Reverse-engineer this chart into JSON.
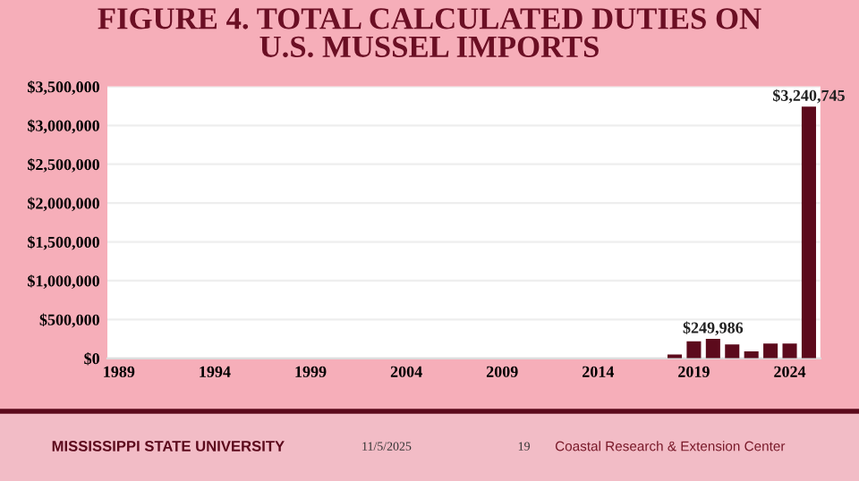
{
  "chart_data": {
    "type": "bar",
    "title": "FIGURE 4. TOTAL CALCULATED DUTIES ON\nU.S. MUSSEL IMPORTS",
    "categories": [
      "1989",
      null,
      null,
      null,
      null,
      "1994",
      null,
      null,
      null,
      null,
      "1999",
      null,
      null,
      null,
      null,
      "2004",
      null,
      null,
      null,
      null,
      "2009",
      null,
      null,
      null,
      null,
      "2014",
      null,
      null,
      null,
      null,
      "2019",
      null,
      null,
      null,
      null,
      "2024",
      null
    ],
    "values": [
      0,
      0,
      0,
      0,
      0,
      0,
      0,
      0,
      0,
      0,
      0,
      0,
      0,
      0,
      0,
      0,
      0,
      0,
      0,
      0,
      0,
      0,
      0,
      0,
      0,
      0,
      0,
      0,
      0,
      50000,
      220000,
      249986,
      180000,
      90000,
      190000,
      190000,
      3240745
    ],
    "value_labels": [
      null,
      null,
      null,
      null,
      null,
      null,
      null,
      null,
      null,
      null,
      null,
      null,
      null,
      null,
      null,
      null,
      null,
      null,
      null,
      null,
      null,
      null,
      null,
      null,
      null,
      null,
      null,
      null,
      null,
      null,
      null,
      "$249,986",
      null,
      null,
      null,
      null,
      "$3,240,745"
    ],
    "color": "#5c0a1c",
    "ylim": [
      0,
      3500000
    ],
    "yticks": [
      {
        "value": 0,
        "label": "$0"
      },
      {
        "value": 500000,
        "label": "$500,000"
      },
      {
        "value": 1000000,
        "label": "$1,000,000"
      },
      {
        "value": 1500000,
        "label": "$1,500,000"
      },
      {
        "value": 2000000,
        "label": "$2,000,000"
      },
      {
        "value": 2500000,
        "label": "$2,500,000"
      },
      {
        "value": 3000000,
        "label": "$3,000,000"
      },
      {
        "value": 3500000,
        "label": "$3,500,000"
      }
    ],
    "grid": "y",
    "annotations": [
      "MISSISSIPPI STATE UNIVERSITY",
      "11/5/2025",
      "19",
      "Coastal Research & Extension Center"
    ]
  }
}
